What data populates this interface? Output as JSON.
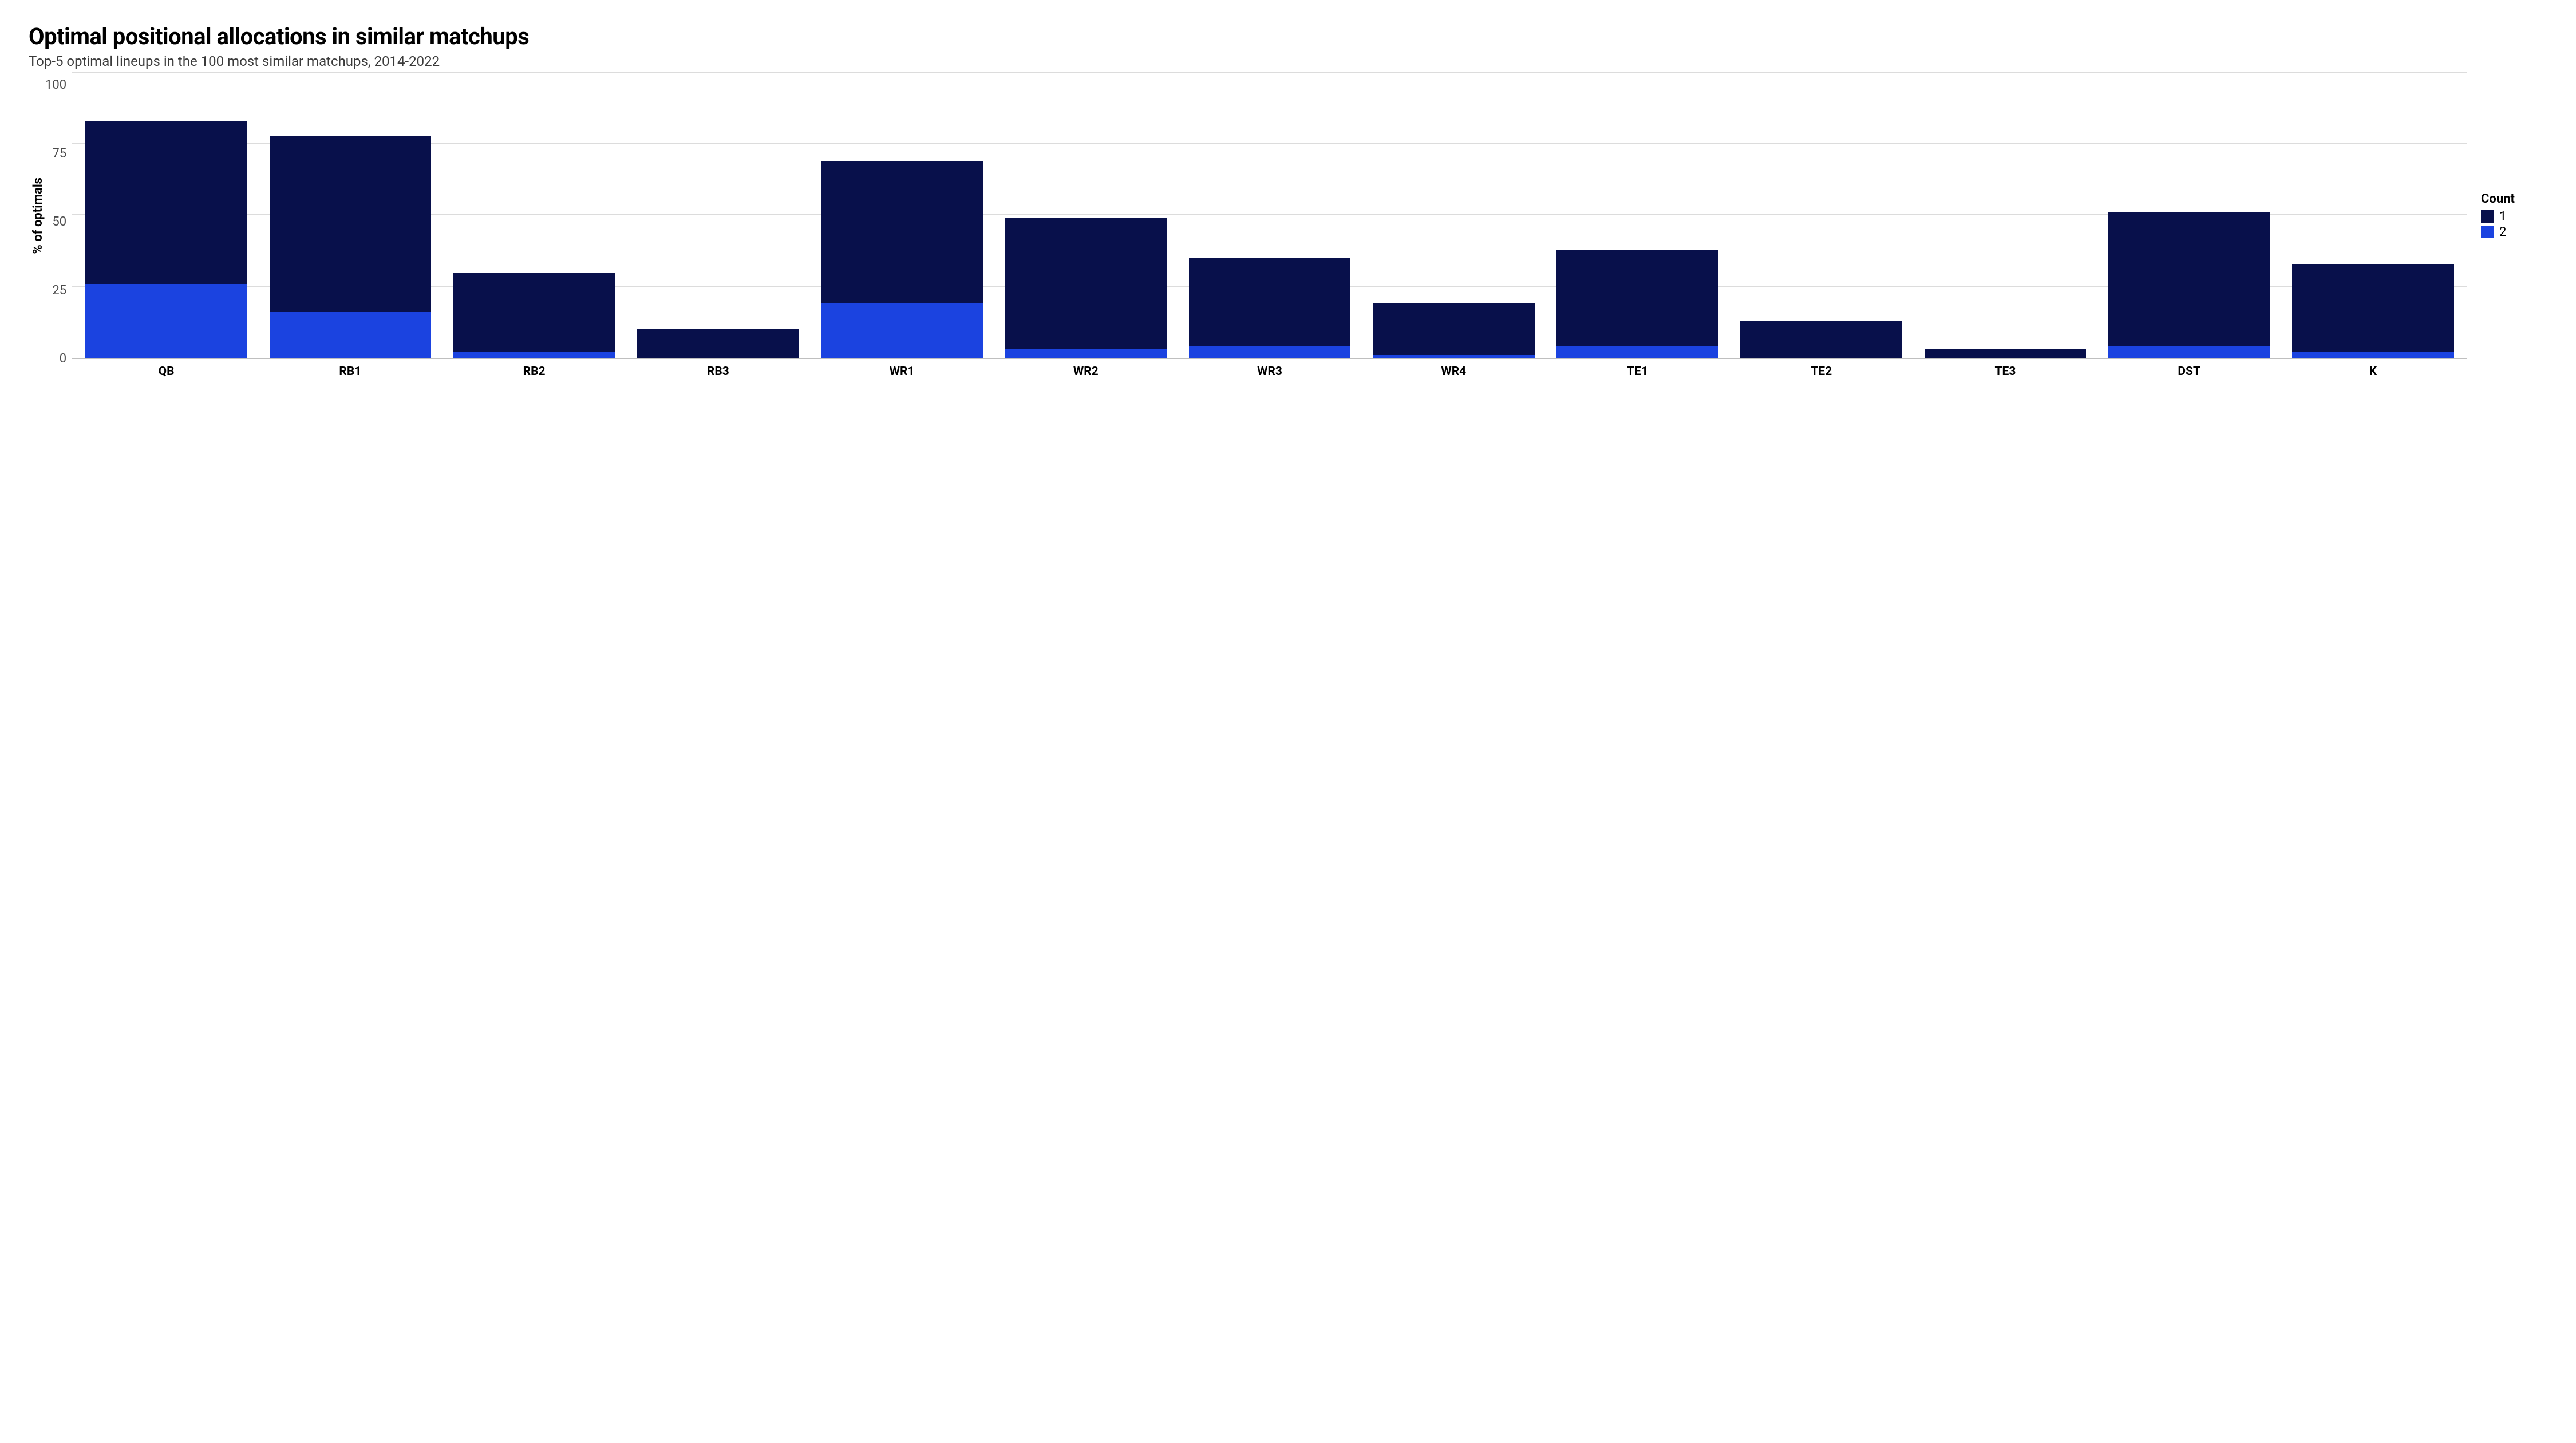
{
  "chart": {
    "type": "stacked-bar",
    "title": "Optimal positional allocations in similar matchups",
    "subtitle": "Top-5 optimal lineups in the 100 most similar matchups, 2014-2022",
    "y_axis": {
      "label": "% of optimals",
      "min": 0,
      "max": 100,
      "ticks": [
        0,
        25,
        50,
        75,
        100
      ],
      "tick_fontsize": 22,
      "label_fontsize": 22,
      "label_fontweight": 700
    },
    "x_axis": {
      "categories": [
        "QB",
        "RB1",
        "RB2",
        "RB3",
        "WR1",
        "WR2",
        "WR3",
        "WR4",
        "TE1",
        "TE2",
        "TE3",
        "DST",
        "K"
      ],
      "label_fontsize": 21,
      "label_fontweight": 700
    },
    "series": [
      {
        "name": "1",
        "color": "#08104b"
      },
      {
        "name": "2",
        "color": "#1b43e0"
      }
    ],
    "data": [
      {
        "cat": "QB",
        "s2": 26,
        "s1": 57
      },
      {
        "cat": "RB1",
        "s2": 16,
        "s1": 62
      },
      {
        "cat": "RB2",
        "s2": 2,
        "s1": 28
      },
      {
        "cat": "RB3",
        "s2": 0,
        "s1": 10
      },
      {
        "cat": "WR1",
        "s2": 19,
        "s1": 50
      },
      {
        "cat": "WR2",
        "s2": 3,
        "s1": 46
      },
      {
        "cat": "WR3",
        "s2": 4,
        "s1": 31
      },
      {
        "cat": "WR4",
        "s2": 1,
        "s1": 18
      },
      {
        "cat": "TE1",
        "s2": 4,
        "s1": 34
      },
      {
        "cat": "TE2",
        "s2": 0,
        "s1": 13
      },
      {
        "cat": "TE3",
        "s2": 0,
        "s1": 3
      },
      {
        "cat": "DST",
        "s2": 4,
        "s1": 47
      },
      {
        "cat": "K",
        "s2": 2,
        "s1": 31
      }
    ],
    "legend": {
      "title": "Count",
      "title_fontsize": 22,
      "item_fontsize": 22
    },
    "colors": {
      "background": "#ffffff",
      "gridline": "#dcdcdc",
      "axis_line": "#bfbfbf",
      "title_color": "#000000",
      "subtitle_color": "#3a3a3a",
      "tick_color": "#4a4a4a"
    },
    "title_fontsize": 40,
    "subtitle_fontsize": 24,
    "bar_width_ratio": 0.88
  }
}
